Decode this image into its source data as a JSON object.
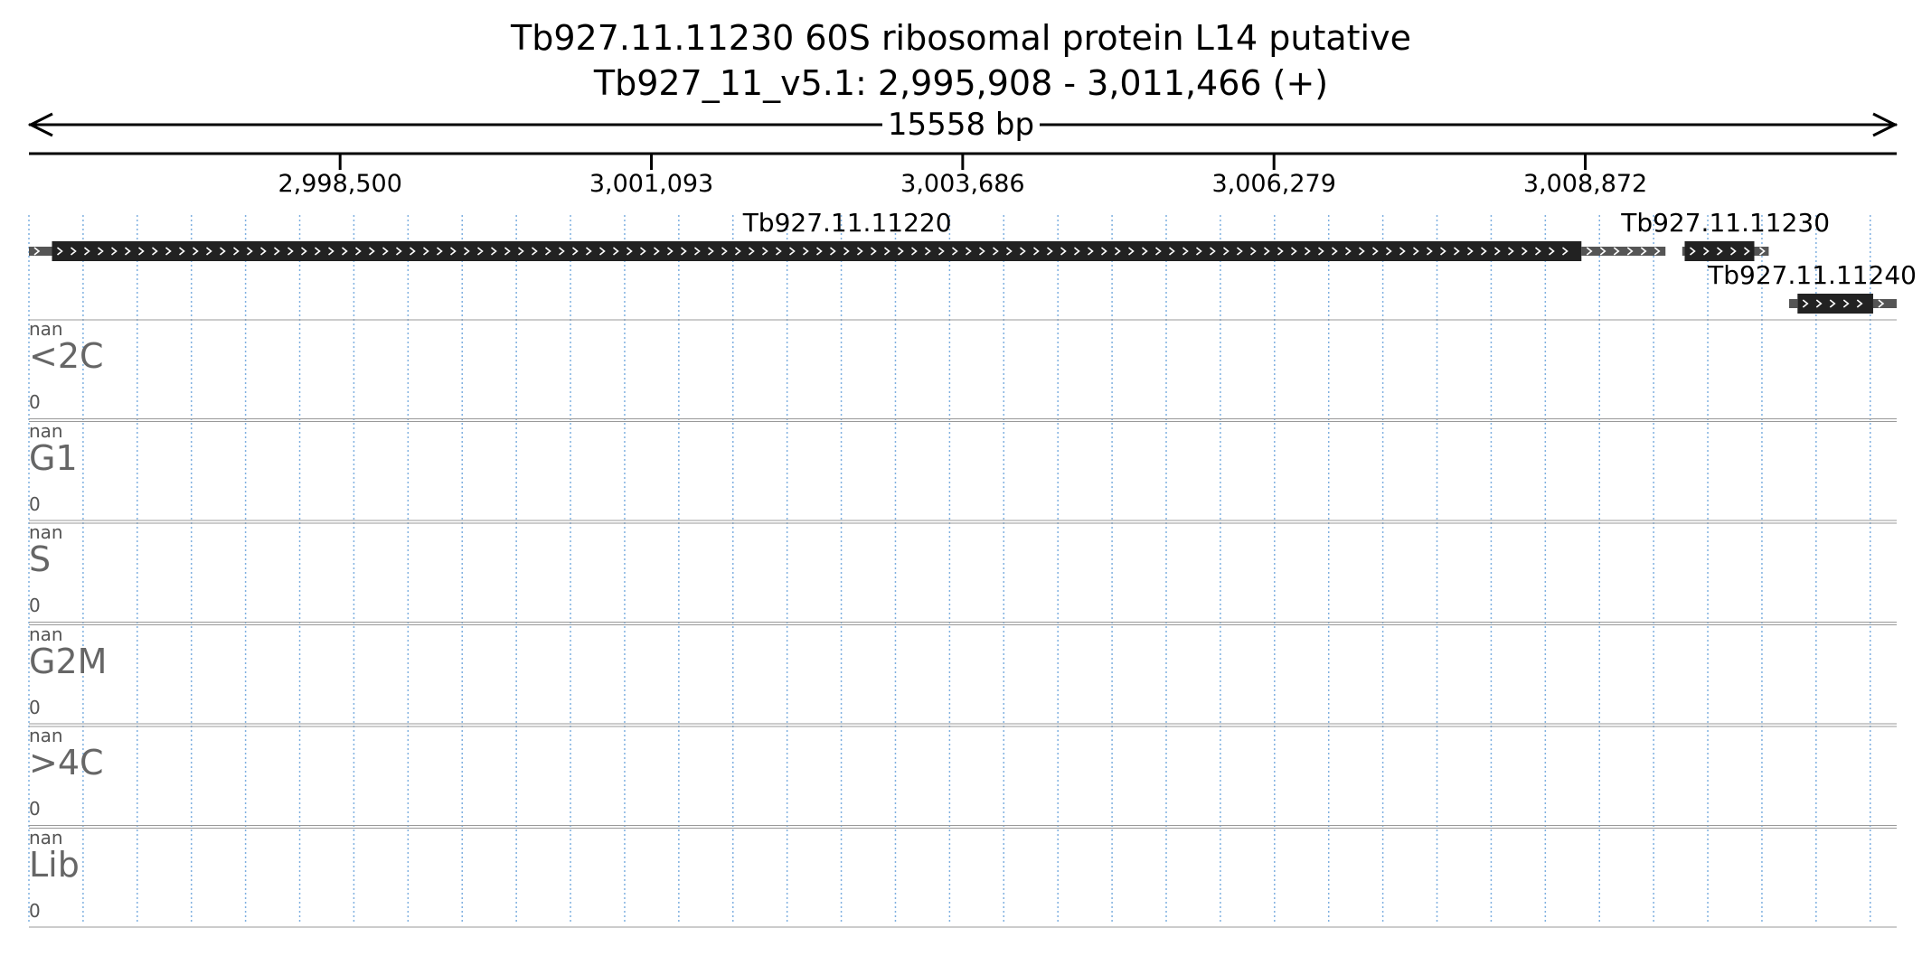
{
  "title": "Tb927.11.11230  60S ribosomal protein L14  putative",
  "subtitle": "Tb927_11_v5.1: 2,995,908 - 3,011,466 (+)",
  "span_label": "15558 bp",
  "region": {
    "start": 2995908,
    "end": 3011466,
    "strand": "+"
  },
  "ticks": [
    {
      "pos": 2998500,
      "label": "2,998,500"
    },
    {
      "pos": 3001093,
      "label": "3,001,093"
    },
    {
      "pos": 3003686,
      "label": "3,003,686"
    },
    {
      "pos": 3006279,
      "label": "3,006,279"
    },
    {
      "pos": 3008872,
      "label": "3,008,872"
    }
  ],
  "genes": [
    {
      "id": "Tb927.11.11220",
      "label": "Tb927.11.11220",
      "utr5": [
        2995908,
        2996100
      ],
      "cds": [
        2996100,
        3008840
      ],
      "utr3": [
        3008840,
        3009540
      ],
      "row": 0
    },
    {
      "id": "Tb927.11.11230",
      "label": "Tb927.11.11230",
      "utr5": [
        3009680,
        3009700
      ],
      "cds": [
        3009700,
        3010280
      ],
      "utr3": [
        3010280,
        3010400
      ],
      "row": 0
    },
    {
      "id": "Tb927.11.11240",
      "label": "Tb927.11.11240",
      "utr5": [
        3010570,
        3010640
      ],
      "cds": [
        3010640,
        3011270
      ],
      "utr3": [
        3011270,
        3011466
      ],
      "row": 1
    }
  ],
  "tracks": [
    {
      "name": "<2C",
      "max": "nan",
      "min": "0"
    },
    {
      "name": "G1",
      "max": "nan",
      "min": "0"
    },
    {
      "name": "S",
      "max": "nan",
      "min": "0"
    },
    {
      "name": "G2M",
      "max": "nan",
      "min": "0"
    },
    {
      "name": ">4C",
      "max": "nan",
      "min": "0"
    },
    {
      "name": "Lib",
      "max": "nan",
      "min": "0"
    }
  ],
  "colors": {
    "cds": "#222222",
    "utr": "#555555",
    "grid": "#7fb0e0",
    "track_border": "#999999"
  }
}
